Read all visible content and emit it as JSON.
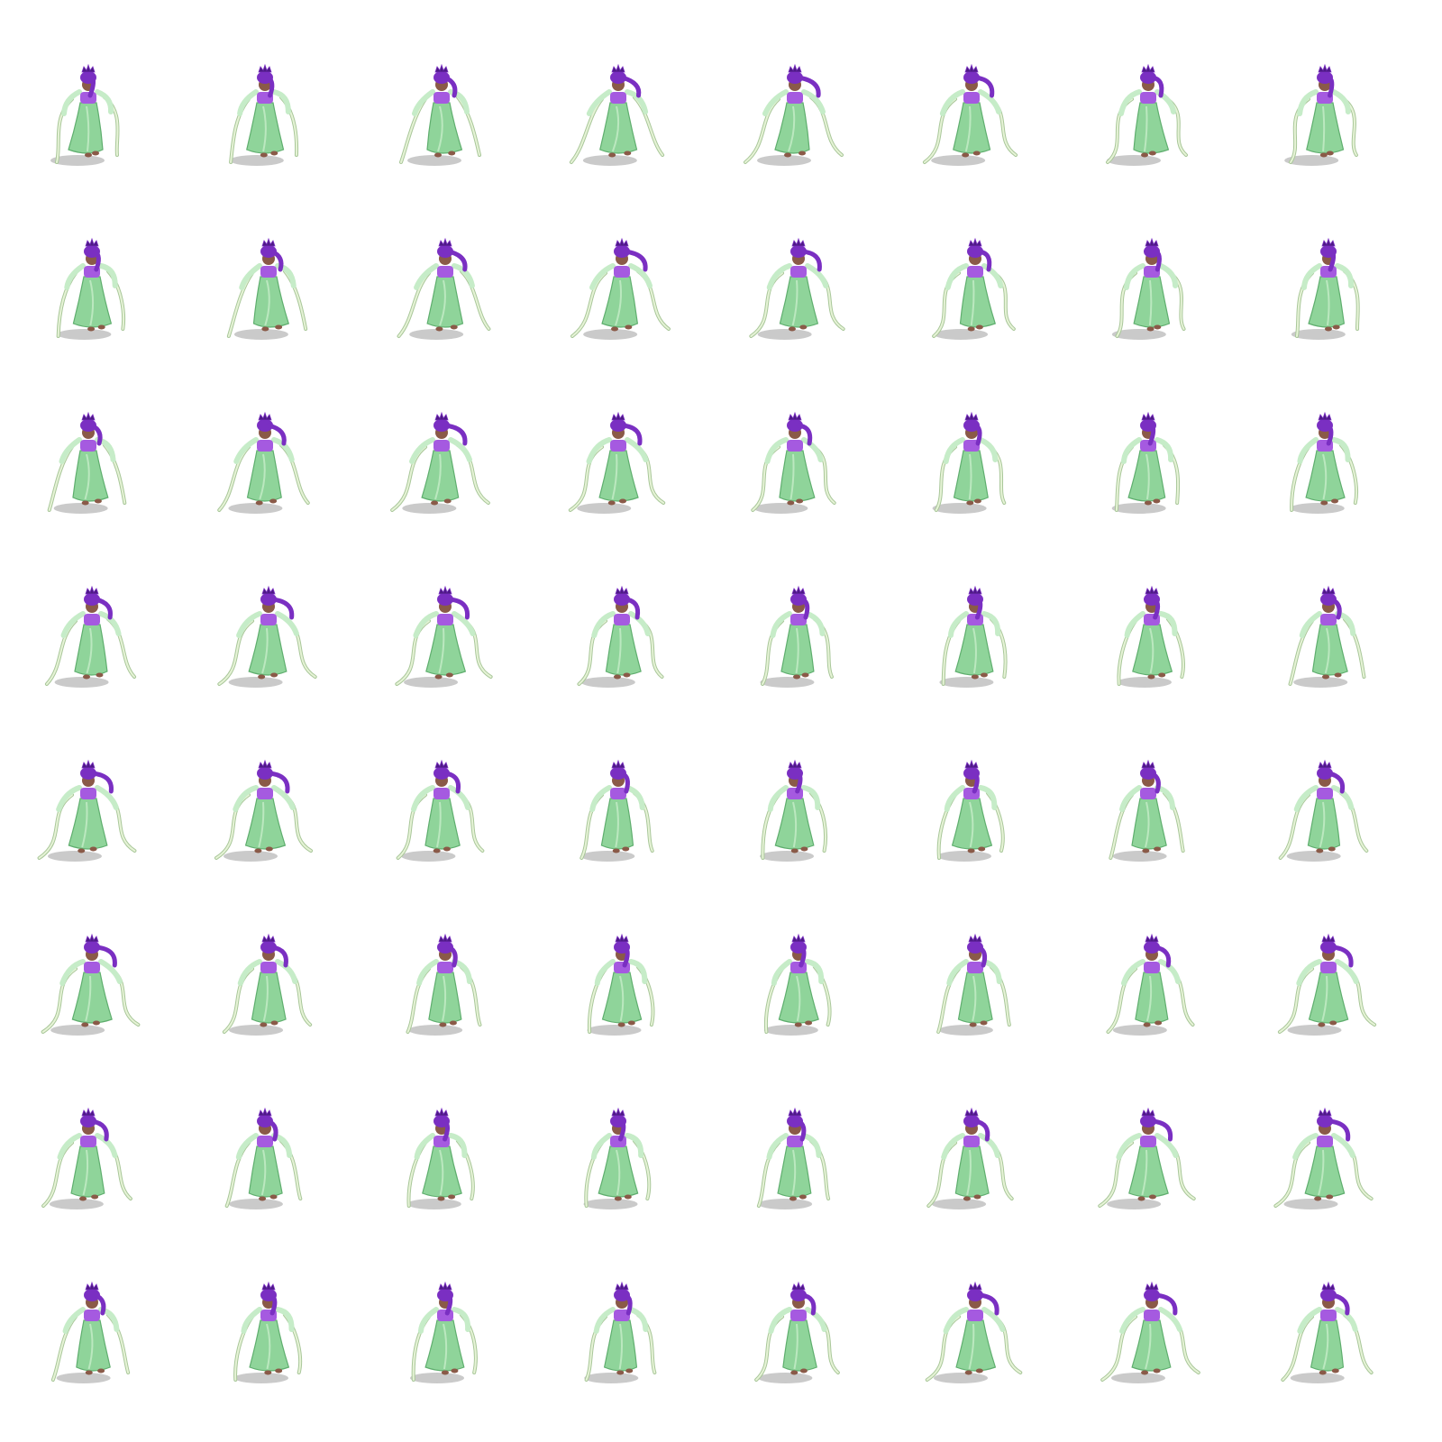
{
  "sprite_sheet": {
    "rows": 8,
    "columns": 8,
    "subject": "dancer-sprite",
    "colors": {
      "background": "#ffffff",
      "dress": "#8fd49a",
      "dress_dark": "#5fae6e",
      "dress_light": "#c6ecc8",
      "hair": "#7a2fc2",
      "hair_dark": "#4e1a86",
      "top": "#a55ae0",
      "skin": "#8a5a48",
      "ribbon": "#e6f3d6",
      "ribbon_edge": "#a9c79a",
      "shadow": "#8a8a8a"
    }
  }
}
